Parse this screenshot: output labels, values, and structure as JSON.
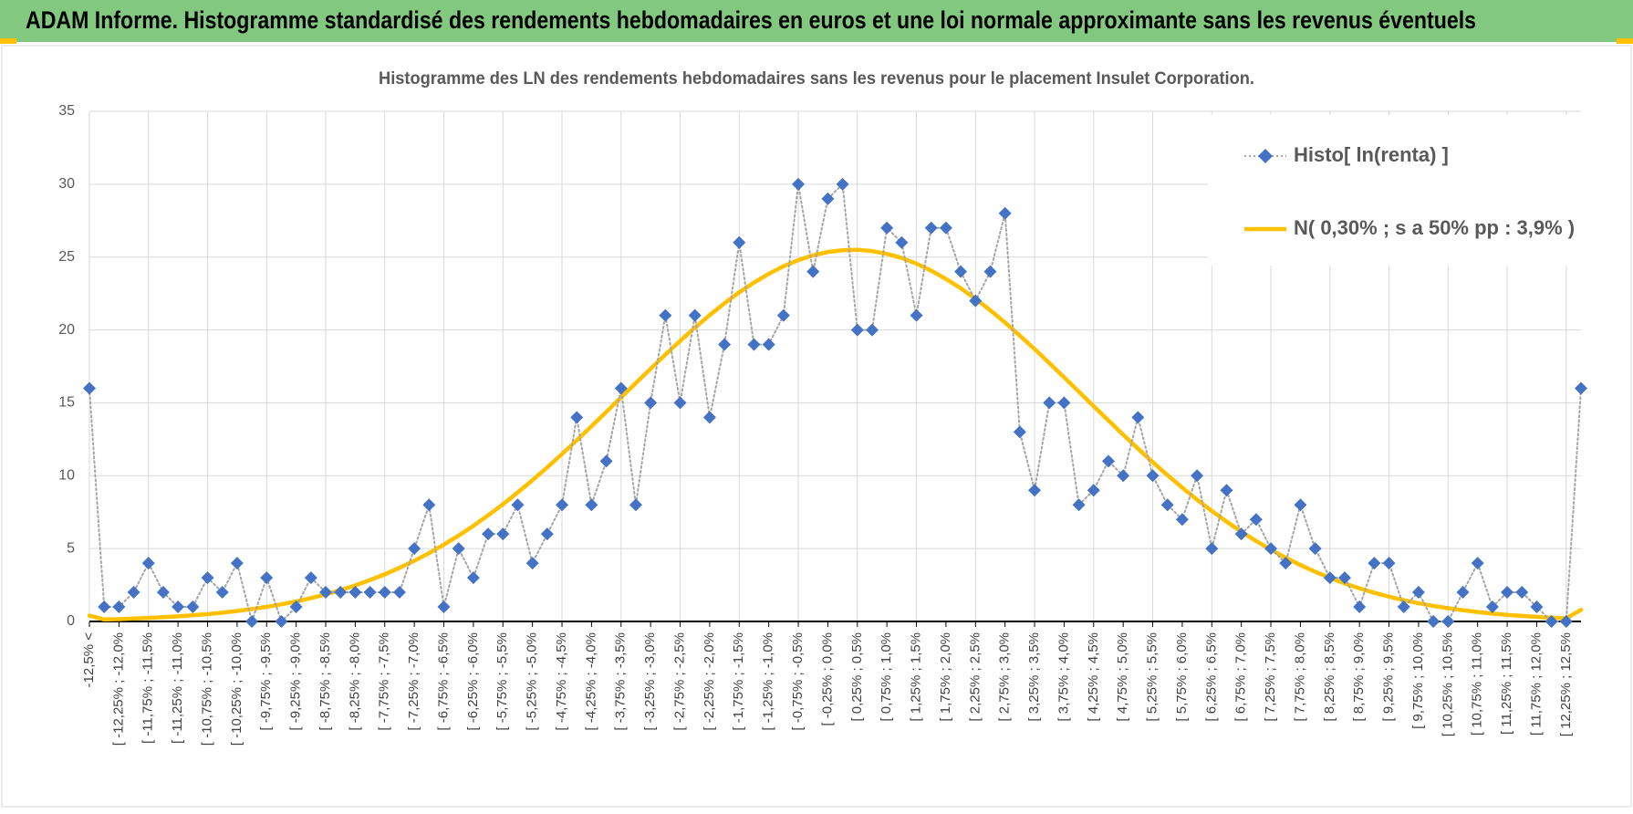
{
  "header": {
    "title": "ADAM Informe. Histogramme standardisé des rendements hebdomadaires en euros et une loi normale approximante sans les revenus éventuels"
  },
  "chart_data": {
    "type": "line",
    "title": "Histogramme des LN des rendements hebdomadaires sans les revenus pour le placement Insulet Corporation.",
    "categories": [
      "-12,5% <",
      null,
      "[ -12,25% ; -12,0%",
      null,
      "[ -11,75% ; -11,5%",
      null,
      "[ -11,25% ; -11,0%",
      null,
      "[ -10,75% ; -10,5%",
      null,
      "[ -10,25% ; -10,0%",
      null,
      "[ -9,75% ; -9,5%",
      null,
      "[ -9,25% ; -9,0%",
      null,
      "[ -8,75% ; -8,5%",
      null,
      "[ -8,25% ; -8,0%",
      null,
      "[ -7,75% ; -7,5%",
      null,
      "[ -7,25% ; -7,0%",
      null,
      "[ -6,75% ; -6,5%",
      null,
      "[ -6,25% ; -6,0%",
      null,
      "[ -5,75% ; -5,5%",
      null,
      "[ -5,25% ; -5,0%",
      null,
      "[ -4,75% ; -4,5%",
      null,
      "[ -4,25% ; -4,0%",
      null,
      "[ -3,75% ; -3,5%",
      null,
      "[ -3,25% ; -3,0%",
      null,
      "[ -2,75% ; -2,5%",
      null,
      "[ -2,25% ; -2,0%",
      null,
      "[ -1,75% ; -1,5%",
      null,
      "[ -1,25% ; -1,0%",
      null,
      "[ -0,75% ; -0,5%",
      null,
      "[ -0,25% ; 0,0%",
      null,
      "[ 0,25% ; 0,5%",
      null,
      "[ 0,75% ; 1,0%",
      null,
      "[ 1,25% ; 1,5%",
      null,
      "[ 1,75% ; 2,0%",
      null,
      "[ 2,25% ; 2,5%",
      null,
      "[ 2,75% ; 3,0%",
      null,
      "[ 3,25% ; 3,5%",
      null,
      "[ 3,75% ; 4,0%",
      null,
      "[ 4,25% ; 4,5%",
      null,
      "[ 4,75% ; 5,0%",
      null,
      "[ 5,25% ; 5,5%",
      null,
      "[ 5,75% ; 6,0%",
      null,
      "[ 6,25% ; 6,5%",
      null,
      "[ 6,75% ; 7,0%",
      null,
      "[ 7,25% ; 7,5%",
      null,
      "[ 7,75% ; 8,0%",
      null,
      "[ 8,25% ; 8,5%",
      null,
      "[ 8,75% ; 9,0%",
      null,
      "[ 9,25% ; 9,5%",
      null,
      "[ 9,75% ; 10,0%",
      null,
      "[ 10,25% ; 10,5%",
      null,
      "[ 10,75% ; 11,0%",
      null,
      "[ 11,25% ; 11,5%",
      null,
      "[ 11,75% ; 12,0%",
      null,
      "[ 12,25% ; 12,5%",
      null
    ],
    "series": [
      {
        "name": "Histo[ ln(renta) ]",
        "color": "#4472c4",
        "line_color": "#a5a5a5",
        "dash": "dotted",
        "marker": "diamond",
        "values": [
          16,
          1,
          1,
          2,
          4,
          2,
          1,
          1,
          3,
          2,
          4,
          0,
          3,
          0,
          1,
          3,
          2,
          2,
          2,
          2,
          2,
          2,
          5,
          8,
          1,
          5,
          3,
          6,
          6,
          8,
          4,
          6,
          8,
          14,
          8,
          11,
          16,
          8,
          15,
          21,
          15,
          21,
          14,
          19,
          26,
          19,
          19,
          21,
          30,
          24,
          29,
          30,
          20,
          20,
          27,
          26,
          21,
          27,
          27,
          24,
          22,
          24,
          28,
          13,
          9,
          15,
          15,
          8,
          9,
          11,
          10,
          14,
          10,
          8,
          7,
          10,
          5,
          9,
          6,
          7,
          5,
          4,
          8,
          5,
          3,
          3,
          1,
          4,
          4,
          1,
          2,
          0,
          0,
          2,
          4,
          1,
          2,
          2,
          1,
          0,
          0,
          16
        ]
      },
      {
        "name": "N( 0,30% ; s a 50% pp : 3,9% )",
        "color": "#ffc000",
        "values": [
          0.4,
          0.13,
          0.16,
          0.2,
          0.24,
          0.29,
          0.35,
          0.42,
          0.5,
          0.6,
          0.72,
          0.85,
          1.0,
          1.18,
          1.37,
          1.6,
          1.86,
          2.15,
          2.47,
          2.84,
          3.23,
          3.68,
          4.16,
          4.69,
          5.27,
          5.89,
          6.56,
          7.28,
          8.04,
          8.85,
          9.69,
          10.57,
          11.49,
          12.43,
          13.4,
          14.38,
          15.37,
          16.36,
          17.34,
          18.31,
          19.25,
          20.16,
          21.02,
          21.83,
          22.58,
          23.25,
          23.85,
          24.37,
          24.79,
          25.12,
          25.35,
          25.47,
          25.5,
          25.41,
          25.22,
          24.94,
          24.55,
          24.07,
          23.5,
          22.86,
          22.13,
          21.35,
          20.51,
          19.61,
          18.69,
          17.73,
          16.75,
          15.76,
          14.77,
          13.79,
          12.81,
          11.86,
          10.93,
          10.04,
          9.18,
          8.36,
          7.58,
          6.85,
          6.16,
          5.52,
          4.92,
          4.37,
          3.87,
          3.41,
          2.99,
          2.61,
          2.27,
          1.97,
          1.7,
          1.46,
          1.25,
          1.07,
          0.91,
          0.77,
          0.65,
          0.54,
          0.45,
          0.38,
          0.31,
          0.26,
          0.21,
          0.8
        ]
      }
    ],
    "ylim": [
      0,
      35
    ],
    "yticks": [
      0,
      5,
      10,
      15,
      20,
      25,
      30,
      35
    ],
    "grid": true,
    "legend": "top-right"
  }
}
